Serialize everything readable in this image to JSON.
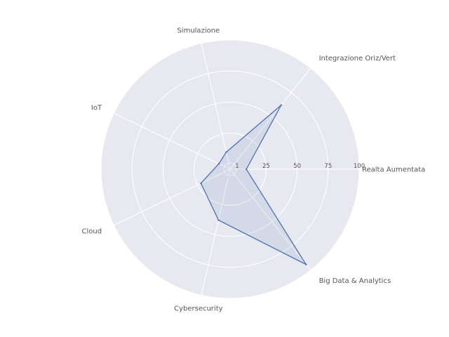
{
  "chart_data": {
    "type": "radar",
    "categories": [
      "Realta Aumentata",
      "Integrazione Oriz/Vert",
      "Simulazione",
      "IoT",
      "Cloud",
      "Cybersecurity",
      "Big Data & Analytics"
    ],
    "series": [
      {
        "values": [
          9,
          62,
          10,
          6,
          22,
          38,
          94
        ]
      }
    ],
    "radial_range": [
      1,
      100
    ],
    "radial_ticks": [
      1,
      25,
      50,
      75,
      100
    ],
    "grid": true,
    "legend": "none",
    "colors": {
      "line": "#4c72b0",
      "fill": "#4c72b0",
      "background": "#e8e8f0",
      "grid": "#ffffff",
      "text": "#555555"
    }
  }
}
